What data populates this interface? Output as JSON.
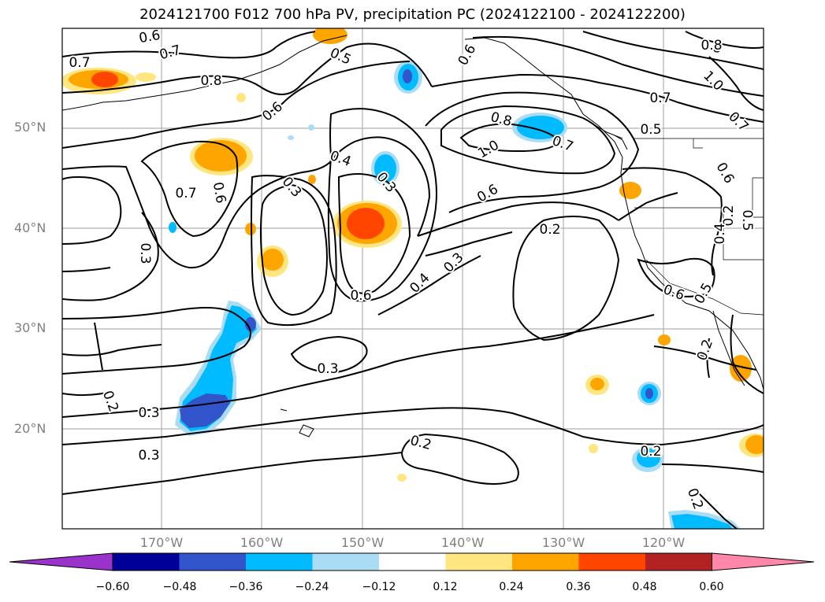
{
  "title": "2024121700 F012 700 hPa PV, precipitation PC (2024122100 - 2024122200)",
  "lat_labels": [
    "50°N",
    "40°N",
    "30°N",
    "20°N"
  ],
  "lon_labels": [
    "170°W",
    "160°W",
    "150°W",
    "140°W",
    "130°W",
    "120°W"
  ],
  "colorbar": {
    "ticks": [
      "−0.60",
      "−0.48",
      "−0.36",
      "−0.24",
      "−0.12",
      "0.12",
      "0.24",
      "0.36",
      "0.48",
      "0.60"
    ],
    "colors": [
      "#9933cc",
      "#000099",
      "#3355cc",
      "#00bbff",
      "#aaddf5",
      "#ffffff",
      "#ffe680",
      "#ffa500",
      "#ff4500",
      "#b22222",
      "#ff88aa"
    ]
  },
  "contour_labels": [
    {
      "t": "0.7"
    },
    {
      "t": "0.6"
    },
    {
      "t": "0.7"
    },
    {
      "t": "0.8"
    },
    {
      "t": "0.5"
    },
    {
      "t": "0.6"
    },
    {
      "t": "0.6"
    },
    {
      "t": "0.8"
    },
    {
      "t": "1.0"
    },
    {
      "t": "0.7"
    },
    {
      "t": "0.6"
    },
    {
      "t": "0.7"
    },
    {
      "t": "0.5"
    },
    {
      "t": "0.8"
    },
    {
      "t": "0.8"
    },
    {
      "t": "1.0"
    },
    {
      "t": "0.7"
    },
    {
      "t": "0.4"
    },
    {
      "t": "0.3"
    },
    {
      "t": "0.3"
    },
    {
      "t": "0.6"
    },
    {
      "t": "0.7"
    },
    {
      "t": "0.2"
    },
    {
      "t": "0.3"
    },
    {
      "t": "0.6"
    },
    {
      "t": "0.4"
    },
    {
      "t": "0.3"
    },
    {
      "t": "0.6"
    },
    {
      "t": "0.2"
    },
    {
      "t": "0.4"
    },
    {
      "t": "0.5"
    },
    {
      "t": "0.3"
    },
    {
      "t": "0.3"
    },
    {
      "t": "0.2"
    },
    {
      "t": "0.3"
    },
    {
      "t": "0.2"
    },
    {
      "t": "0.2"
    },
    {
      "t": "0.2"
    },
    {
      "t": "0.2"
    },
    {
      "t": "0.6"
    },
    {
      "t": "0.5"
    }
  ]
}
